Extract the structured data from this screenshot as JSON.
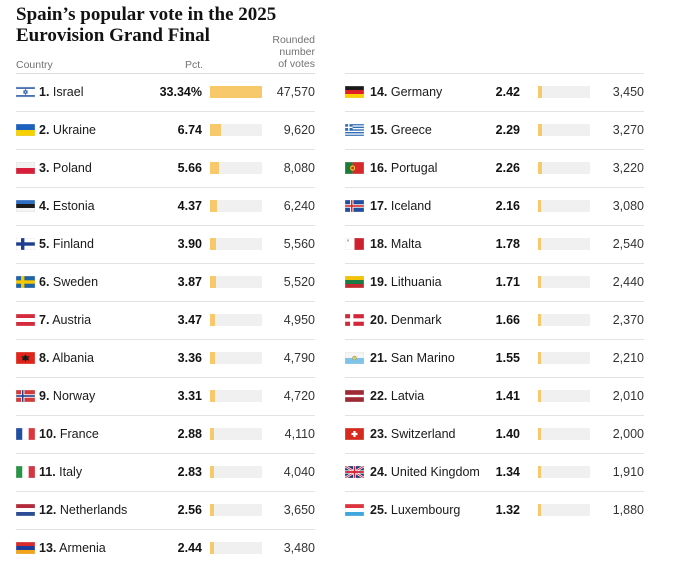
{
  "title_line1": "Spain’s popular vote in the 2025",
  "title_line2": "Eurovision Grand Final",
  "headers": {
    "country": "Country",
    "pct": "Pct.",
    "votes_line1": "Rounded",
    "votes_line2": "number",
    "votes_line3": "of votes"
  },
  "colors": {
    "bar": "#f7c96a",
    "bar_track": "#f0f0f0"
  },
  "chart_data": {
    "type": "table",
    "title": "Spain’s popular vote in the 2025 Eurovision Grand Final",
    "columns": [
      "Country",
      "Pct.",
      "Rounded number of votes"
    ],
    "bar_max": 33.34,
    "rows": [
      {
        "rank": "1.",
        "country": "Israel",
        "flag": "israel-flag",
        "pct": 33.34,
        "pct_text": "33.34%",
        "votes": "47,570"
      },
      {
        "rank": "2.",
        "country": "Ukraine",
        "flag": "ukraine-flag",
        "pct": 6.74,
        "pct_text": "6.74",
        "votes": "9,620"
      },
      {
        "rank": "3.",
        "country": "Poland",
        "flag": "poland-flag",
        "pct": 5.66,
        "pct_text": "5.66",
        "votes": "8,080"
      },
      {
        "rank": "4.",
        "country": "Estonia",
        "flag": "estonia-flag",
        "pct": 4.37,
        "pct_text": "4.37",
        "votes": "6,240"
      },
      {
        "rank": "5.",
        "country": "Finland",
        "flag": "finland-flag",
        "pct": 3.9,
        "pct_text": "3.90",
        "votes": "5,560"
      },
      {
        "rank": "6.",
        "country": "Sweden",
        "flag": "sweden-flag",
        "pct": 3.87,
        "pct_text": "3.87",
        "votes": "5,520"
      },
      {
        "rank": "7.",
        "country": "Austria",
        "flag": "austria-flag",
        "pct": 3.47,
        "pct_text": "3.47",
        "votes": "4,950"
      },
      {
        "rank": "8.",
        "country": "Albania",
        "flag": "albania-flag",
        "pct": 3.36,
        "pct_text": "3.36",
        "votes": "4,790"
      },
      {
        "rank": "9.",
        "country": "Norway",
        "flag": "norway-flag",
        "pct": 3.31,
        "pct_text": "3.31",
        "votes": "4,720"
      },
      {
        "rank": "10.",
        "country": "France",
        "flag": "france-flag",
        "pct": 2.88,
        "pct_text": "2.88",
        "votes": "4,110"
      },
      {
        "rank": "11.",
        "country": "Italy",
        "flag": "italy-flag",
        "pct": 2.83,
        "pct_text": "2.83",
        "votes": "4,040"
      },
      {
        "rank": "12.",
        "country": "Netherlands",
        "flag": "netherlands-flag",
        "pct": 2.56,
        "pct_text": "2.56",
        "votes": "3,650"
      },
      {
        "rank": "13.",
        "country": "Armenia",
        "flag": "armenia-flag",
        "pct": 2.44,
        "pct_text": "2.44",
        "votes": "3,480"
      },
      {
        "rank": "14.",
        "country": "Germany",
        "flag": "germany-flag",
        "pct": 2.42,
        "pct_text": "2.42",
        "votes": "3,450"
      },
      {
        "rank": "15.",
        "country": "Greece",
        "flag": "greece-flag",
        "pct": 2.29,
        "pct_text": "2.29",
        "votes": "3,270"
      },
      {
        "rank": "16.",
        "country": "Portugal",
        "flag": "portugal-flag",
        "pct": 2.26,
        "pct_text": "2.26",
        "votes": "3,220"
      },
      {
        "rank": "17.",
        "country": "Iceland",
        "flag": "iceland-flag",
        "pct": 2.16,
        "pct_text": "2.16",
        "votes": "3,080"
      },
      {
        "rank": "18.",
        "country": "Malta",
        "flag": "malta-flag",
        "pct": 1.78,
        "pct_text": "1.78",
        "votes": "2,540"
      },
      {
        "rank": "19.",
        "country": "Lithuania",
        "flag": "lithuania-flag",
        "pct": 1.71,
        "pct_text": "1.71",
        "votes": "2,440"
      },
      {
        "rank": "20.",
        "country": "Denmark",
        "flag": "denmark-flag",
        "pct": 1.66,
        "pct_text": "1.66",
        "votes": "2,370"
      },
      {
        "rank": "21.",
        "country": "San Marino",
        "flag": "san-marino-flag",
        "pct": 1.55,
        "pct_text": "1.55",
        "votes": "2,210"
      },
      {
        "rank": "22.",
        "country": "Latvia",
        "flag": "latvia-flag",
        "pct": 1.41,
        "pct_text": "1.41",
        "votes": "2,010"
      },
      {
        "rank": "23.",
        "country": "Switzerland",
        "flag": "switzerland-flag",
        "pct": 1.4,
        "pct_text": "1.40",
        "votes": "2,000"
      },
      {
        "rank": "24.",
        "country": "United Kingdom",
        "flag": "united-kingdom-flag",
        "pct": 1.34,
        "pct_text": "1.34",
        "votes": "1,910"
      },
      {
        "rank": "25.",
        "country": "Luxembourg",
        "flag": "luxembourg-flag",
        "pct": 1.32,
        "pct_text": "1.32",
        "votes": "1,880"
      }
    ]
  }
}
